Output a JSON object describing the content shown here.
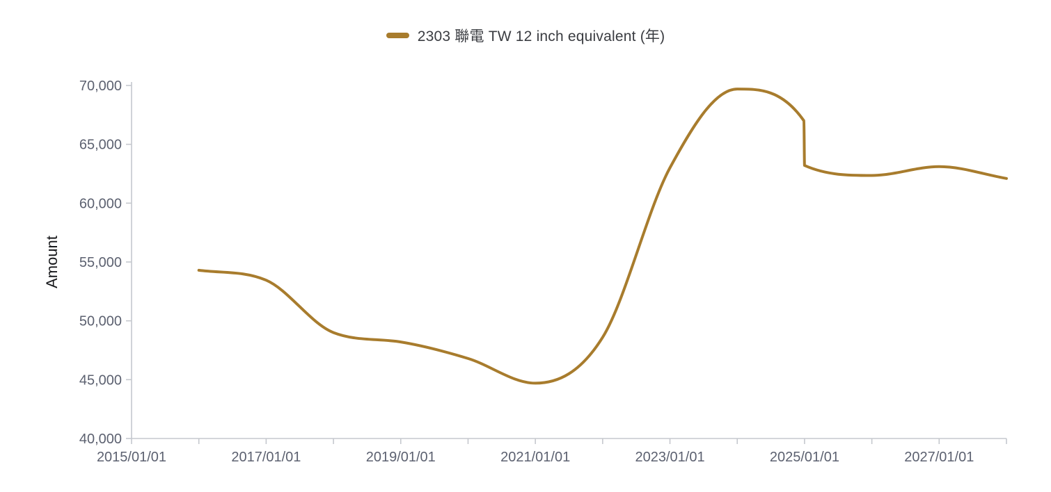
{
  "legend": {
    "items": [
      {
        "label": "2303 聯電 TW 12 inch equivalent (年)",
        "marker_color": "#A87C2D"
      }
    ]
  },
  "chart_data": {
    "type": "line",
    "title": "",
    "xlabel": "",
    "ylabel": "Amount",
    "grid": false,
    "legend_position": "top-center",
    "ylim": [
      40000,
      70000
    ],
    "xlim_years": [
      2015,
      2028
    ],
    "y_ticks": [
      {
        "value": 40000,
        "label": "40,000"
      },
      {
        "value": 45000,
        "label": "45,000"
      },
      {
        "value": 50000,
        "label": "50,000"
      },
      {
        "value": 55000,
        "label": "55,000"
      },
      {
        "value": 60000,
        "label": "60,000"
      },
      {
        "value": 65000,
        "label": "65,000"
      },
      {
        "value": 70000,
        "label": "70,000"
      }
    ],
    "x_ticks": [
      {
        "year": 2015,
        "label": "2015/01/01"
      },
      {
        "year": 2016,
        "label": ""
      },
      {
        "year": 2017,
        "label": "2017/01/01"
      },
      {
        "year": 2018,
        "label": ""
      },
      {
        "year": 2019,
        "label": "2019/01/01"
      },
      {
        "year": 2020,
        "label": ""
      },
      {
        "year": 2021,
        "label": "2021/01/01"
      },
      {
        "year": 2022,
        "label": ""
      },
      {
        "year": 2023,
        "label": "2023/01/01"
      },
      {
        "year": 2024,
        "label": ""
      },
      {
        "year": 2025,
        "label": "2025/01/01"
      },
      {
        "year": 2026,
        "label": ""
      },
      {
        "year": 2027,
        "label": "2027/01/01"
      },
      {
        "year": 2028,
        "label": ""
      }
    ],
    "series": [
      {
        "name": "2303 聯電 TW 12 inch equivalent (年)",
        "color": "#A87C2D",
        "line_width": 4,
        "interpolation": "monotone",
        "points": [
          {
            "date": "2016/01/01",
            "year": 2016,
            "value": 54300
          },
          {
            "date": "2017/01/01",
            "year": 2017,
            "value": 53450
          },
          {
            "date": "2018/01/01",
            "year": 2018,
            "value": 49000
          },
          {
            "date": "2019/01/01",
            "year": 2019,
            "value": 48200
          },
          {
            "date": "2020/01/01",
            "year": 2020,
            "value": 46800
          },
          {
            "date": "2021/01/01",
            "year": 2021,
            "value": 44700
          },
          {
            "date": "2022/01/01",
            "year": 2022,
            "value": 48600
          },
          {
            "date": "2023/01/01",
            "year": 2023,
            "value": 63000
          },
          {
            "date": "2024/01/01",
            "year": 2024,
            "value": 69700
          },
          {
            "date": "2024/12/28",
            "year": 2024.99,
            "value": 67000
          },
          {
            "date": "2025/01/01",
            "year": 2025,
            "value": 63200
          },
          {
            "date": "2026/01/01",
            "year": 2026,
            "value": 62350
          },
          {
            "date": "2027/01/01",
            "year": 2027,
            "value": 63100
          },
          {
            "date": "2028/01/01",
            "year": 2028,
            "value": 62100
          }
        ]
      }
    ]
  },
  "style": {
    "background": "#ffffff",
    "axis_color": "#c5c8ce",
    "tick_label_color": "#5c6170",
    "legend_text_color": "#3a3c41",
    "axis_title_color": "#17181b"
  }
}
